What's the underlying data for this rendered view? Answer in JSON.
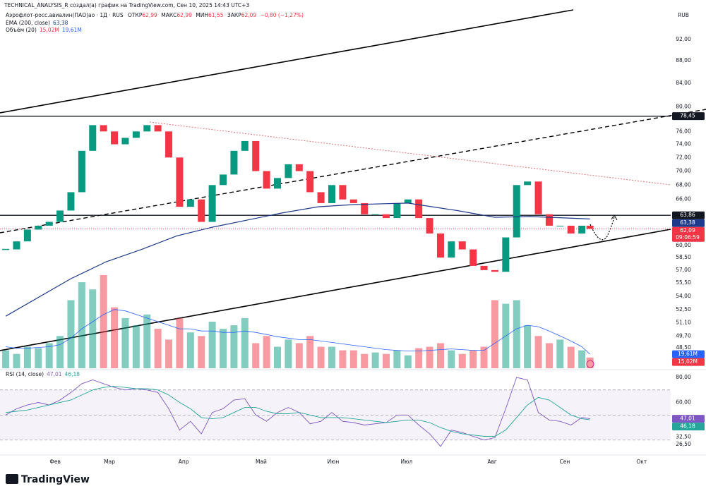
{
  "chart_data": {
    "type": "candlestick",
    "watermark": "TECHNICAL_ANALYSIS_R создал(а) график на TradingView.com, Сен 10, 2025 14:43 UTC+3",
    "symbol": "Аэрофлот-росс.авиалин(ПАО)ао · 1Д · RUS",
    "ohlc": [
      {
        "label": "ОТКР",
        "value": "62,99"
      },
      {
        "label": "МАКС",
        "value": "62,99"
      },
      {
        "label": "МИН",
        "value": "61,55"
      },
      {
        "label": "ЗАКР",
        "value": "62,09"
      }
    ],
    "change": "−0,80 (−1,27%)",
    "ema_legend": {
      "name": "EMA (200, close)",
      "value": "63,38"
    },
    "volume_legend": {
      "name": "Объём (20)",
      "value": "15,02M",
      "ma_value": "19,61M"
    },
    "currency": "RUB",
    "brand": "TradingView",
    "log_scale": true,
    "grid": false,
    "up_color": "#089981",
    "down_color": "#f23645",
    "xlim": [
      -2.1,
      244.7
    ],
    "xticks": [
      {
        "value": 18.2,
        "label": "Фев"
      },
      {
        "value": 38.2,
        "label": "Мар"
      },
      {
        "value": 65.5,
        "label": "Апр"
      },
      {
        "value": 94,
        "label": "Май"
      },
      {
        "value": 120.5,
        "label": "Июн"
      },
      {
        "value": 147.5,
        "label": "Июл"
      },
      {
        "value": 179,
        "label": "Авг"
      },
      {
        "value": 205.7,
        "label": "Сен"
      },
      {
        "value": 234,
        "label": "Окт"
      }
    ],
    "ylim": [
      46.5,
      97.8
    ],
    "yticks": [
      {
        "value": 92,
        "label": "92,00"
      },
      {
        "value": 88,
        "label": "88,00"
      },
      {
        "value": 84,
        "label": "84,00"
      },
      {
        "value": 80,
        "label": "80,00"
      },
      {
        "value": 76,
        "label": "76,00"
      },
      {
        "value": 74,
        "label": "74,00"
      },
      {
        "value": 72,
        "label": "72,00"
      },
      {
        "value": 70,
        "label": "70,00"
      },
      {
        "value": 68,
        "label": "68,00"
      },
      {
        "value": 66,
        "label": "66,00"
      },
      {
        "value": 60,
        "label": "60,00"
      },
      {
        "value": 58.5,
        "label": "58,50"
      },
      {
        "value": 57,
        "label": "57,00"
      },
      {
        "value": 55.5,
        "label": "55,50"
      },
      {
        "value": 54,
        "label": "54,00"
      },
      {
        "value": 52.5,
        "label": "52,50"
      },
      {
        "value": 51.1,
        "label": "51,10"
      },
      {
        "value": 49.7,
        "label": "49,70"
      },
      {
        "value": 48.5,
        "label": "48,50"
      }
    ],
    "price_labels": [
      {
        "value": 78.45,
        "label": "78,45",
        "color": "#131722",
        "line": "solid"
      },
      {
        "value": 63.86,
        "label": "63,86",
        "color": "#131722",
        "line": "solid"
      },
      {
        "value": 63.38,
        "label": "63,38",
        "color": "#1e3a8a"
      },
      {
        "value": 62.09,
        "label": "62,09",
        "color": "#f23645",
        "line": "dotted",
        "countdown": "09:06:59"
      }
    ],
    "x": [
      0,
      4,
      8,
      12,
      16,
      20,
      24,
      28,
      32,
      36,
      40,
      44,
      48,
      52,
      56,
      60,
      64,
      68,
      72,
      76,
      80,
      84,
      88,
      92,
      96,
      100,
      104,
      108,
      112,
      116,
      120,
      124,
      128,
      132,
      136,
      140,
      144,
      148,
      152,
      156,
      160,
      164,
      168,
      172,
      176,
      180,
      184,
      188,
      192,
      196,
      200,
      204,
      208,
      212,
      215
    ],
    "close": [
      59.5,
      60.5,
      62,
      62.5,
      63,
      64.5,
      67,
      73,
      77,
      76,
      74,
      75,
      76,
      77,
      76,
      72,
      65,
      66,
      63,
      68,
      69.5,
      73,
      74.5,
      70,
      67.5,
      69,
      71,
      70,
      67,
      65.5,
      68,
      66,
      65.5,
      64,
      64,
      63.5,
      65.5,
      66,
      63.5,
      61.5,
      58.5,
      60.5,
      59.5,
      57.5,
      57,
      56.8,
      61,
      68,
      68.5,
      64,
      62.5,
      62.5,
      61.5,
      62.5,
      62.09
    ],
    "ema": {
      "color": "#1e3a8a",
      "x": [
        0,
        24,
        37,
        50,
        63,
        76,
        102,
        115,
        128,
        148,
        166,
        180,
        193,
        215
      ],
      "values": [
        51.8,
        56,
        58,
        59.5,
        61.2,
        62.3,
        64.2,
        65,
        65.3,
        65.5,
        64.5,
        63.6,
        63.7,
        63.38
      ]
    },
    "volume": {
      "ylim": [
        0,
        500
      ],
      "values": [
        25,
        20,
        30,
        28,
        35,
        45,
        95,
        120,
        110,
        130,
        85,
        70,
        60,
        75,
        55,
        40,
        70,
        50,
        45,
        65,
        55,
        60,
        70,
        35,
        45,
        30,
        40,
        35,
        45,
        30,
        30,
        25,
        25,
        20,
        22,
        20,
        25,
        18,
        28,
        30,
        35,
        25,
        20,
        25,
        30,
        95,
        90,
        95,
        60,
        45,
        35,
        40,
        30,
        25,
        15.02
      ],
      "ma_color": "#2962ff",
      "ma": [
        30,
        28,
        28,
        29,
        30,
        33,
        42,
        55,
        65,
        75,
        82,
        80,
        75,
        70,
        65,
        60,
        55,
        55,
        52,
        52,
        50,
        50,
        52,
        50,
        47,
        44,
        42,
        40,
        40,
        38,
        36,
        34,
        32,
        30,
        28,
        26,
        25,
        24,
        24,
        25,
        26,
        27,
        26,
        25,
        25,
        35,
        45,
        55,
        60,
        58,
        52,
        45,
        38,
        30,
        19.61
      ],
      "badges": [
        {
          "value": 19.61,
          "label": "19,61M",
          "color": "#2962ff"
        },
        {
          "value": 15.02,
          "label": "15,02M",
          "color": "#f23645"
        }
      ]
    },
    "rsi": {
      "type": "line",
      "name": "RSI (14, close)",
      "ylim": [
        20.9,
        84.5
      ],
      "yticks": [
        {
          "value": 80,
          "label": "80,00"
        },
        {
          "value": 60,
          "label": "60,00"
        },
        {
          "value": 32.5,
          "label": "32,50"
        },
        {
          "value": 26.5,
          "label": "26,50"
        }
      ],
      "levels": [
        70,
        50,
        30
      ],
      "series": [
        {
          "name": "47,01",
          "color": "#7e57c2",
          "values": [
            50,
            55,
            58,
            60,
            58,
            62,
            68,
            75,
            78,
            75,
            72,
            70,
            71,
            70,
            68,
            55,
            38,
            45,
            35,
            52,
            55,
            62,
            63,
            50,
            45,
            52,
            56,
            52,
            43,
            45,
            52,
            45,
            44,
            42,
            43,
            44,
            50,
            50,
            42,
            35,
            25,
            38,
            36,
            33,
            30,
            32,
            55,
            80,
            78,
            52,
            46,
            45,
            42,
            48,
            47.01
          ]
        },
        {
          "name": "46,18",
          "color": "#26a69a",
          "values": [
            52,
            53,
            54,
            56,
            58,
            60,
            62,
            66,
            70,
            72,
            73,
            72,
            71,
            71,
            70,
            66,
            60,
            55,
            48,
            47,
            48,
            52,
            56,
            56,
            53,
            51,
            51,
            52,
            50,
            48,
            48,
            48,
            47,
            46,
            45,
            44,
            45,
            46,
            46,
            44,
            40,
            37,
            35,
            34,
            33,
            33,
            38,
            48,
            58,
            64,
            62,
            56,
            50,
            47,
            46.18
          ]
        }
      ]
    }
  }
}
